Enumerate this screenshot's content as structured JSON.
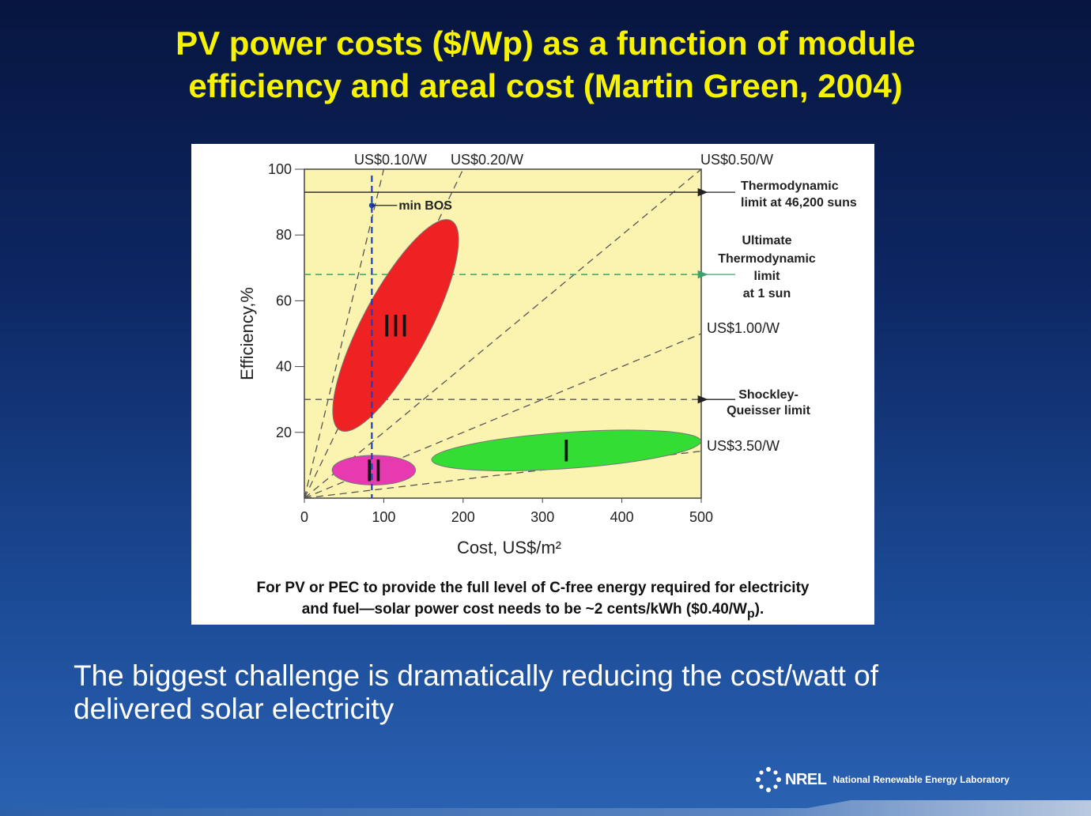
{
  "slide": {
    "title_line1": "PV power costs ($/Wp) as a function of module",
    "title_line2": "efficiency and areal cost (Martin Green, 2004)",
    "body_line1": "The biggest challenge is dramatically reducing the cost/watt of",
    "body_line2": "delivered solar electricity",
    "footer_logo_mark": "NREL",
    "footer_org": "National Renewable Energy Laboratory",
    "colors": {
      "title": "#f7f300",
      "background_top": "#07153f",
      "background_bottom": "#2a62b2",
      "plot_background": "#fbf3b0"
    }
  },
  "chart_data": {
    "type": "scatter",
    "xlabel": "Cost, US$/m²",
    "ylabel": "Efficiency,%",
    "xlim": [
      0,
      500
    ],
    "ylim": [
      0,
      100
    ],
    "x_ticks": [
      0,
      100,
      200,
      300,
      400,
      500
    ],
    "y_ticks": [
      20,
      40,
      60,
      80,
      100
    ],
    "grid": false,
    "cost_per_watt_lines": [
      {
        "label": "US$0.10/W",
        "value": 0.1
      },
      {
        "label": "US$0.20/W",
        "value": 0.2
      },
      {
        "label": "US$0.50/W",
        "value": 0.5
      },
      {
        "label": "US$1.00/W",
        "value": 1.0
      },
      {
        "label": "US$3.50/W",
        "value": 3.5
      }
    ],
    "horizontal_limits": [
      {
        "label_line1": "Thermodynamic",
        "label_line2": "limit at 46,200 suns",
        "efficiency": 93,
        "style": "solid",
        "color": "#333333"
      },
      {
        "label_line1": "Ultimate",
        "label_line2": "Thermodynamic",
        "label_line3": "limit",
        "label_line4": "at 1 sun",
        "efficiency": 68,
        "style": "dashed",
        "color": "#3aa36a"
      },
      {
        "label_line1": "Shockley-",
        "label_line2": "Queisser limit",
        "efficiency": 30,
        "style": "dashed",
        "color": "#555555"
      }
    ],
    "min_bos": {
      "label": "min BOS",
      "cost": 85
    },
    "regions": [
      {
        "label": "I",
        "color": "#33dd33",
        "cost_range": [
          160,
          500
        ],
        "efficiency_range": [
          9,
          20
        ]
      },
      {
        "label": "II",
        "color": "#e83ab0",
        "cost_range": [
          35,
          140
        ],
        "efficiency_range": [
          4,
          13
        ]
      },
      {
        "label": "III",
        "color": "#ee2222",
        "cost_range": [
          45,
          185
        ],
        "efficiency_range": [
          21,
          84
        ]
      }
    ],
    "caption_line1": "For PV or PEC to provide the full level of C-free energy required for electricity",
    "caption_line2": "and fuel—solar power cost needs to be ~2 cents/kWh ($0.40/W",
    "caption_subscript": "p",
    "caption_end": ")."
  }
}
